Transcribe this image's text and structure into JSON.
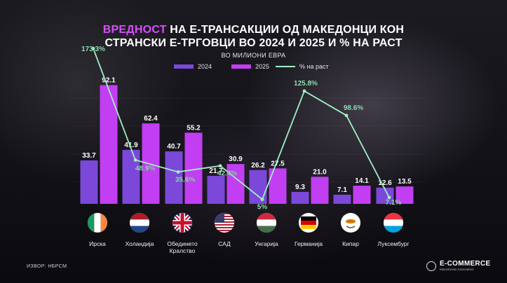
{
  "title": {
    "accent": "ВРЕДНОСТ",
    "line1_rest": " НА Е-ТРАНСАКЦИИ ОД МАКЕДОНЦИ КОН",
    "line2": "СТРАНСКИ Е-ТРГОВЦИ ВО 2024 И 2025 И % НА РАСТ"
  },
  "subtitle": "ВО МИЛИОНИ ЕВРА",
  "legend": {
    "s2024": "2024",
    "s2025": "2025",
    "growth": "% на раст"
  },
  "colors": {
    "c2024": "#7b48d9",
    "c2025": "#c23ef2",
    "growth": "#9ff0c4"
  },
  "chart_data": {
    "type": "bar",
    "title": "ВРЕДНОСТ НА Е-ТРАНСАКЦИИ ОД МАКЕДОНЦИ КОН СТРАНСКИ Е-ТРГОВЦИ ВО 2024 И 2025 И % НА РАСТ",
    "subtitle": "ВО МИЛИОНИ ЕВРА",
    "categories": [
      "Ирска",
      "Холандија",
      "Обединето Кралство",
      "САД",
      "Унгарија",
      "Германија",
      "Кипар",
      "Луксембург"
    ],
    "series": [
      {
        "name": "2024",
        "type": "bar",
        "values": [
          33.7,
          41.9,
          40.7,
          21.7,
          26.2,
          9.3,
          7.1,
          12.6
        ],
        "labels": [
          "33.7",
          "41.9",
          "40.7",
          "21.7",
          "26.2",
          "9.3",
          "7.1",
          "12.6"
        ]
      },
      {
        "name": "2025",
        "type": "bar",
        "values": [
          92.1,
          62.4,
          55.2,
          30.9,
          27.5,
          21.0,
          14.1,
          13.5
        ],
        "labels": [
          "92.1",
          "62.4",
          "55.2",
          "30.9",
          "27.5",
          "21.0",
          "14.1",
          "13.5"
        ]
      },
      {
        "name": "% на раст",
        "type": "line",
        "values": [
          173.3,
          48.9,
          35.6,
          42.4,
          5,
          125.8,
          98.6,
          7.1
        ],
        "labels": [
          "173.3%",
          "48.9%",
          "35.6%",
          "42.4%",
          "5%",
          "125.8%",
          "98.6%",
          "7.1%"
        ]
      }
    ],
    "ylim": [
      0,
      100
    ],
    "growth_ylim": [
      0,
      200
    ],
    "legend_position": "top-center",
    "grid": false
  },
  "countries": [
    {
      "label": "Ирска",
      "flag": "ireland-flag"
    },
    {
      "label": "Холандија",
      "flag": "netherlands-flag"
    },
    {
      "label": "Обединето\nКралство",
      "flag": "uk-flag"
    },
    {
      "label": "САД",
      "flag": "usa-flag"
    },
    {
      "label": "Унгарија",
      "flag": "hungary-flag"
    },
    {
      "label": "Германија",
      "flag": "germany-flag"
    },
    {
      "label": "Кипар",
      "flag": "cyprus-flag"
    },
    {
      "label": "Луксембург",
      "flag": "luxembourg-flag"
    }
  ],
  "footer": {
    "source": "ИЗВОР: НБРСМ",
    "brand_name": "E-COMMERCE",
    "brand_sub": "Macedonian Association"
  }
}
